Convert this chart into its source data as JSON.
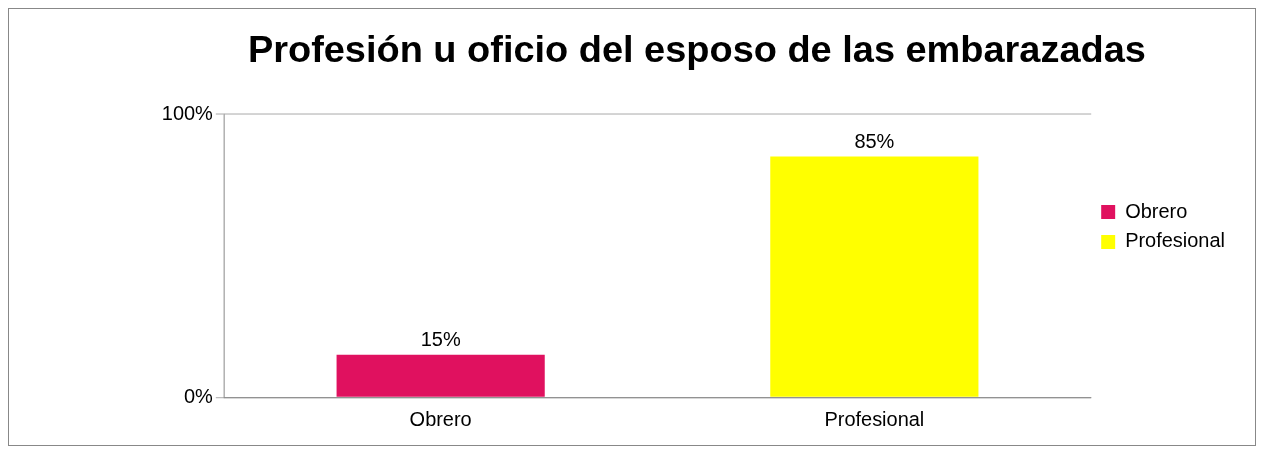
{
  "chart_data": {
    "type": "bar",
    "title": "Profesión u oficio del esposo de las embarazadas",
    "categories": [
      "Obrero",
      "Profesional"
    ],
    "series": [
      {
        "name": "Obrero",
        "color": "#e0115f",
        "values": [
          15,
          null
        ],
        "value_labels": [
          "15%",
          null
        ]
      },
      {
        "name": "Profesional",
        "color": "#ffff00",
        "values": [
          null,
          85
        ],
        "value_labels": [
          null,
          "85%"
        ]
      }
    ],
    "ylim": [
      0,
      100
    ],
    "yticks": [
      {
        "value": 0,
        "label": "0%"
      },
      {
        "value": 100,
        "label": "100%"
      }
    ],
    "grid": "y",
    "legend": "right"
  }
}
